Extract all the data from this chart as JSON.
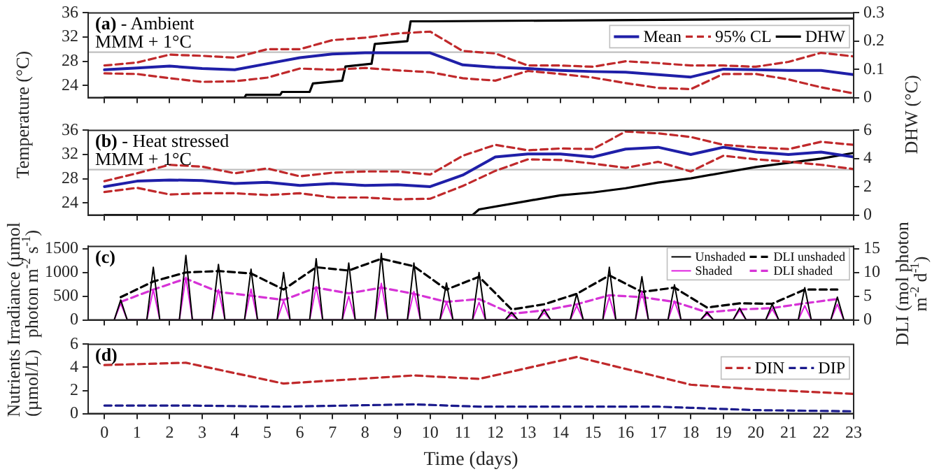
{
  "chart_data": [
    {
      "type": "line",
      "title": "(a) - Ambient",
      "ylabel": "Temperature (°C)",
      "y2label": "DHW (°C)",
      "x": [
        0,
        1,
        2,
        3,
        4,
        5,
        6,
        7,
        8,
        9,
        10,
        11,
        12,
        13,
        14,
        15,
        16,
        17,
        18,
        19,
        20,
        21,
        22,
        23
      ],
      "xlim": [
        -0.5,
        23
      ],
      "xticks": [
        0,
        1,
        2,
        3,
        4,
        5,
        6,
        7,
        8,
        9,
        10,
        11,
        12,
        13,
        14,
        15,
        16,
        17,
        18,
        19,
        20,
        21,
        22,
        23
      ],
      "ylim": [
        22,
        36
      ],
      "yticks": [
        24,
        28,
        32,
        36
      ],
      "y2lim": [
        0,
        0.3
      ],
      "y2ticks": [
        0,
        0.1,
        0.2,
        0.3
      ],
      "tick_labels": "y",
      "legend": "top right",
      "ref_lines": [
        {
          "axis": "y",
          "value": 29.5,
          "label": "MMM + 1°C",
          "color": "#bfbfbf"
        }
      ],
      "series": [
        {
          "name": "Mean",
          "color": "#1f1fa8",
          "values": [
            26.6,
            26.9,
            27.2,
            26.8,
            26.6,
            27.6,
            28.6,
            29.2,
            29.4,
            29.4,
            29.4,
            27.4,
            27.0,
            26.8,
            26.5,
            26.3,
            26.2,
            25.8,
            25.4,
            26.7,
            26.6,
            26.5,
            26.5,
            25.8
          ]
        },
        {
          "name": "95% CL",
          "color": "#c0292b",
          "line_style": "dashed",
          "values": [
            27.3,
            27.8,
            29.1,
            28.9,
            28.6,
            30.0,
            30.0,
            31.5,
            31.9,
            32.6,
            32.9,
            29.7,
            29.3,
            27.3,
            27.3,
            27.1,
            28.0,
            27.7,
            27.3,
            27.3,
            27.1,
            27.9,
            29.4,
            28.8
          ]
        },
        {
          "color": "#c0292b",
          "line_style": "dashed",
          "values": [
            26.0,
            25.9,
            25.2,
            24.6,
            24.7,
            25.3,
            26.8,
            26.6,
            26.9,
            26.5,
            26.2,
            25.2,
            24.8,
            26.4,
            25.9,
            25.3,
            24.4,
            23.6,
            23.4,
            25.9,
            25.9,
            25.0,
            23.7,
            22.7
          ]
        },
        {
          "name": "DHW",
          "color": "#000000",
          "axis": "y2",
          "x": [
            0,
            4.3,
            4.35,
            5.4,
            5.45,
            6.3,
            6.4,
            7.3,
            7.4,
            8.2,
            8.3,
            9.3,
            9.4,
            10,
            23
          ],
          "values": [
            0,
            0,
            0.01,
            0.01,
            0.02,
            0.02,
            0.05,
            0.06,
            0.11,
            0.12,
            0.19,
            0.2,
            0.27,
            0.27,
            0.28
          ]
        }
      ]
    },
    {
      "type": "line",
      "title": "(b) - Heat stressed",
      "x": [
        0,
        1,
        2,
        3,
        4,
        5,
        6,
        7,
        8,
        9,
        10,
        11,
        12,
        13,
        14,
        15,
        16,
        17,
        18,
        19,
        20,
        21,
        22,
        23
      ],
      "xlim": [
        -0.5,
        23
      ],
      "xticks": [
        0,
        1,
        2,
        3,
        4,
        5,
        6,
        7,
        8,
        9,
        10,
        11,
        12,
        13,
        14,
        15,
        16,
        17,
        18,
        19,
        20,
        21,
        22,
        23
      ],
      "ylim": [
        22,
        36
      ],
      "yticks": [
        24,
        28,
        32,
        36
      ],
      "y2lim": [
        0,
        6
      ],
      "y2ticks": [
        0,
        2,
        4,
        6
      ],
      "tick_labels": "y",
      "ref_lines": [
        {
          "axis": "y",
          "value": 29.5,
          "label": "MMM + 1°C",
          "color": "#bfbfbf"
        }
      ],
      "series": [
        {
          "color": "#1f1fa8",
          "values": [
            26.7,
            27.6,
            27.8,
            27.7,
            27.2,
            27.4,
            26.9,
            27.2,
            26.9,
            27.0,
            26.7,
            28.6,
            31.6,
            32.1,
            32.1,
            31.6,
            32.9,
            33.2,
            32.0,
            33.2,
            32.4,
            32.0,
            32.4,
            31.6
          ]
        },
        {
          "color": "#c0292b",
          "line_style": "dashed",
          "values": [
            27.6,
            28.9,
            30.3,
            30.0,
            28.9,
            29.7,
            28.4,
            29.0,
            29.2,
            29.2,
            28.7,
            31.8,
            33.6,
            32.7,
            33.0,
            32.9,
            35.8,
            35.5,
            34.9,
            33.6,
            33.2,
            32.9,
            34.1,
            33.6
          ]
        },
        {
          "color": "#c0292b",
          "line_style": "dashed",
          "values": [
            25.8,
            26.5,
            25.4,
            25.6,
            25.6,
            25.3,
            25.6,
            24.9,
            24.9,
            24.6,
            24.7,
            26.8,
            29.3,
            31.2,
            31.1,
            30.5,
            29.8,
            30.8,
            29.2,
            31.8,
            31.2,
            30.8,
            30.3,
            29.6
          ]
        },
        {
          "color": "#000000",
          "axis": "y2",
          "x": [
            0,
            11.3,
            11.5,
            13,
            14,
            15,
            16,
            17,
            18,
            19,
            20,
            21,
            22,
            23
          ],
          "values": [
            0,
            0,
            0.4,
            1.0,
            1.4,
            1.6,
            1.9,
            2.3,
            2.6,
            3.0,
            3.4,
            3.7,
            4.0,
            4.4
          ]
        }
      ]
    },
    {
      "type": "line",
      "title": "(c)",
      "ylabel": "Irradiance (µmol photon m$^{-2}$ s$^{-1}$)",
      "y2label": "DLI (mol photon m$^{-2}$ d$^{-1}$)",
      "xlim": [
        -0.5,
        23
      ],
      "xticks": [
        0,
        1,
        2,
        3,
        4,
        5,
        6,
        7,
        8,
        9,
        10,
        11,
        12,
        13,
        14,
        15,
        16,
        17,
        18,
        19,
        20,
        21,
        22,
        23
      ],
      "ylim": [
        0,
        1550
      ],
      "yticks": [
        0,
        500,
        1000,
        1500
      ],
      "y2lim": [
        0,
        15.5
      ],
      "y2ticks": [
        0,
        5,
        10,
        15
      ],
      "tick_labels": "y",
      "legend": "top right",
      "series": [
        {
          "name": "Unshaded",
          "color": "#000000",
          "x": [
            0.3,
            0.5,
            0.7,
            1.3,
            1.5,
            1.7,
            2.3,
            2.5,
            2.7,
            3.3,
            3.5,
            3.7,
            4.3,
            4.5,
            4.7,
            5.3,
            5.5,
            5.7,
            6.3,
            6.5,
            6.7,
            7.3,
            7.5,
            7.7,
            8.3,
            8.5,
            8.7,
            9.3,
            9.5,
            9.7,
            10.3,
            10.5,
            10.7,
            11.3,
            11.5,
            11.7,
            12.3,
            12.5,
            12.7,
            13.3,
            13.5,
            13.7,
            14.3,
            14.5,
            14.7,
            15.3,
            15.5,
            15.7,
            16.3,
            16.5,
            16.7,
            17.3,
            17.5,
            17.7,
            18.3,
            18.5,
            18.7,
            19.3,
            19.5,
            19.7,
            20.3,
            20.5,
            20.7,
            21.3,
            21.5,
            21.7,
            22.3,
            22.5,
            22.7
          ],
          "values": [
            0,
            420,
            0,
            0,
            1110,
            0,
            0,
            1360,
            0,
            0,
            1170,
            0,
            0,
            1070,
            0,
            0,
            1000,
            0,
            0,
            1290,
            0,
            0,
            1200,
            0,
            0,
            1400,
            0,
            0,
            1200,
            0,
            0,
            780,
            0,
            0,
            1000,
            0,
            0,
            160,
            0,
            0,
            220,
            0,
            0,
            550,
            0,
            0,
            1110,
            0,
            0,
            910,
            0,
            0,
            740,
            0,
            0,
            160,
            0,
            0,
            250,
            0,
            0,
            330,
            0,
            0,
            680,
            0,
            0,
            480,
            0
          ]
        },
        {
          "name": "Shaded",
          "color": "#e020e0",
          "x": [
            0.3,
            0.5,
            0.7,
            1.3,
            1.5,
            1.7,
            2.3,
            2.5,
            2.7,
            3.3,
            3.5,
            3.7,
            4.3,
            4.5,
            4.7,
            5.3,
            5.5,
            5.7,
            6.3,
            6.5,
            6.7,
            7.3,
            7.5,
            7.7,
            8.3,
            8.5,
            8.7,
            9.3,
            9.5,
            9.7,
            10.3,
            10.5,
            10.7,
            11.3,
            11.5,
            11.7,
            12.3,
            12.5,
            12.7,
            13.3,
            13.5,
            13.7,
            14.3,
            14.5,
            14.7,
            15.3,
            15.5,
            15.7,
            16.3,
            16.5,
            16.7,
            17.3,
            17.5,
            17.7,
            18.3,
            18.5,
            18.7,
            19.3,
            19.5,
            19.7,
            20.3,
            20.5,
            20.7,
            21.3,
            21.5,
            21.7,
            22.3,
            22.5,
            22.7
          ],
          "values": [
            0,
            350,
            0,
            0,
            640,
            0,
            0,
            900,
            0,
            0,
            640,
            0,
            0,
            650,
            0,
            0,
            400,
            0,
            0,
            700,
            0,
            0,
            500,
            0,
            0,
            770,
            0,
            0,
            600,
            0,
            0,
            370,
            0,
            0,
            370,
            0,
            0,
            100,
            0,
            0,
            150,
            0,
            0,
            300,
            0,
            0,
            480,
            0,
            0,
            600,
            0,
            0,
            400,
            0,
            0,
            120,
            0,
            0,
            200,
            0,
            0,
            230,
            0,
            0,
            300,
            0,
            0,
            330,
            0
          ]
        },
        {
          "name": "DLI unshaded",
          "color": "#000000",
          "line_style": "dashed",
          "axis": "y2",
          "x": [
            0.5,
            1.5,
            2.5,
            3.5,
            4.5,
            5.5,
            6.5,
            7.5,
            8.5,
            9.5,
            10.5,
            11.5,
            12.5,
            13.5,
            14.5,
            15.5,
            16.5,
            17.5,
            18.5,
            19.5,
            20.5,
            21.5,
            22.5
          ],
          "values": [
            4.8,
            8.1,
            10.0,
            10.3,
            9.8,
            6.4,
            11.1,
            10.4,
            12.9,
            11.3,
            6.4,
            9.1,
            2.2,
            3.3,
            5.5,
            9.4,
            5.9,
            6.8,
            2.6,
            3.5,
            3.4,
            6.4,
            6.4
          ]
        },
        {
          "name": "DLI shaded",
          "color": "#d633d6",
          "line_style": "dashed",
          "axis": "y2",
          "x": [
            0.5,
            1.5,
            2.5,
            3.5,
            4.5,
            5.5,
            6.5,
            7.5,
            8.5,
            9.5,
            10.5,
            11.5,
            12.5,
            13.5,
            14.5,
            15.5,
            16.5,
            17.5,
            18.5,
            19.5,
            20.5,
            21.5,
            22.5
          ],
          "values": [
            3.8,
            6.4,
            8.7,
            5.9,
            5.1,
            4.2,
            6.8,
            5.6,
            6.8,
            5.5,
            3.8,
            4.4,
            1.3,
            2.0,
            3.3,
            5.2,
            4.8,
            3.8,
            1.6,
            2.2,
            2.5,
            3.5,
            4.4
          ]
        }
      ]
    },
    {
      "type": "line",
      "title": "(d)",
      "ylabel": "Nutrients (µmol/L)",
      "xlabel": "Time (days)",
      "xlim": [
        -0.5,
        23
      ],
      "xticks": [
        0,
        1,
        2,
        3,
        4,
        5,
        6,
        7,
        8,
        9,
        10,
        11,
        12,
        13,
        14,
        15,
        16,
        17,
        18,
        19,
        20,
        21,
        22,
        23
      ],
      "ylim": [
        0,
        6
      ],
      "yticks": [
        0,
        2,
        4,
        6
      ],
      "legend": "top right",
      "series": [
        {
          "name": "DIN",
          "color": "#c0292b",
          "line_style": "dashed",
          "x": [
            0,
            2.5,
            5.5,
            9.5,
            11.5,
            14.5,
            18,
            20,
            23
          ],
          "values": [
            4.2,
            4.4,
            2.6,
            3.3,
            3.0,
            4.9,
            2.5,
            2.1,
            1.7
          ]
        },
        {
          "name": "DIP",
          "color": "#1a1a8c",
          "line_style": "dashed",
          "x": [
            0,
            2.5,
            5.5,
            9.5,
            11.5,
            14.5,
            17,
            18,
            20,
            23
          ],
          "values": [
            0.7,
            0.7,
            0.6,
            0.8,
            0.6,
            0.6,
            0.6,
            0.5,
            0.3,
            0.2
          ]
        }
      ]
    }
  ]
}
